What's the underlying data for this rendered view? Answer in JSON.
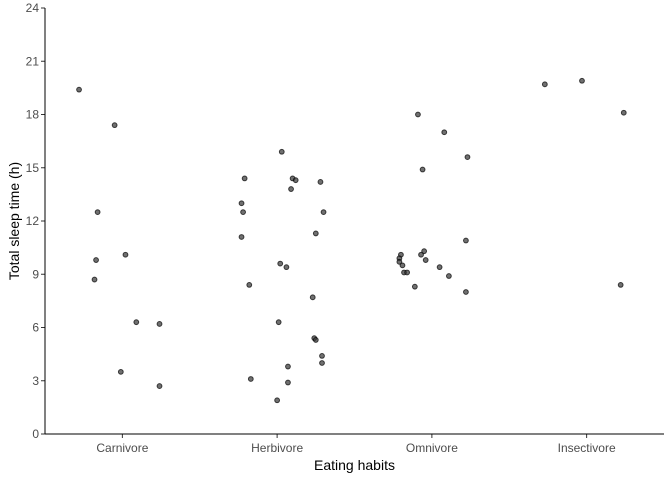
{
  "chart_data": {
    "type": "scatter",
    "title": "",
    "xlabel": "Eating habits",
    "ylabel": "Total sleep time (h)",
    "categories": [
      "Carnivore",
      "Herbivore",
      "Omnivore",
      "Insectivore"
    ],
    "ylim": [
      0,
      24
    ],
    "yticks": [
      "0",
      "3",
      "6",
      "9",
      "12",
      "15",
      "18",
      "21",
      "24"
    ],
    "grid": false,
    "legend": "none",
    "point_color": "#333333",
    "point_opacity": 0.7,
    "points": [
      {
        "category": "Carnivore",
        "jitter": -0.28,
        "y": 19.4
      },
      {
        "category": "Carnivore",
        "jitter": -0.05,
        "y": 17.4
      },
      {
        "category": "Carnivore",
        "jitter": -0.16,
        "y": 12.5
      },
      {
        "category": "Carnivore",
        "jitter": 0.02,
        "y": 10.1
      },
      {
        "category": "Carnivore",
        "jitter": -0.17,
        "y": 9.8
      },
      {
        "category": "Carnivore",
        "jitter": -0.18,
        "y": 8.7
      },
      {
        "category": "Carnivore",
        "jitter": 0.09,
        "y": 6.3
      },
      {
        "category": "Carnivore",
        "jitter": 0.24,
        "y": 6.2
      },
      {
        "category": "Carnivore",
        "jitter": -0.01,
        "y": 3.5
      },
      {
        "category": "Carnivore",
        "jitter": 0.24,
        "y": 2.7
      },
      {
        "category": "Herbivore",
        "jitter": 0.03,
        "y": 15.9
      },
      {
        "category": "Herbivore",
        "jitter": -0.21,
        "y": 14.4
      },
      {
        "category": "Herbivore",
        "jitter": 0.1,
        "y": 14.4
      },
      {
        "category": "Herbivore",
        "jitter": 0.12,
        "y": 14.3
      },
      {
        "category": "Herbivore",
        "jitter": 0.28,
        "y": 14.2
      },
      {
        "category": "Herbivore",
        "jitter": 0.09,
        "y": 13.8
      },
      {
        "category": "Herbivore",
        "jitter": -0.23,
        "y": 13.0
      },
      {
        "category": "Herbivore",
        "jitter": -0.22,
        "y": 12.5
      },
      {
        "category": "Herbivore",
        "jitter": 0.3,
        "y": 12.5
      },
      {
        "category": "Herbivore",
        "jitter": 0.25,
        "y": 11.3
      },
      {
        "category": "Herbivore",
        "jitter": -0.23,
        "y": 11.1
      },
      {
        "category": "Herbivore",
        "jitter": 0.02,
        "y": 9.6
      },
      {
        "category": "Herbivore",
        "jitter": 0.06,
        "y": 9.4
      },
      {
        "category": "Herbivore",
        "jitter": -0.18,
        "y": 8.4
      },
      {
        "category": "Herbivore",
        "jitter": 0.23,
        "y": 7.7
      },
      {
        "category": "Herbivore",
        "jitter": 0.01,
        "y": 6.3
      },
      {
        "category": "Herbivore",
        "jitter": 0.24,
        "y": 5.4
      },
      {
        "category": "Herbivore",
        "jitter": 0.25,
        "y": 5.3
      },
      {
        "category": "Herbivore",
        "jitter": 0.29,
        "y": 4.4
      },
      {
        "category": "Herbivore",
        "jitter": 0.29,
        "y": 4.0
      },
      {
        "category": "Herbivore",
        "jitter": 0.07,
        "y": 3.8
      },
      {
        "category": "Herbivore",
        "jitter": -0.17,
        "y": 3.1
      },
      {
        "category": "Herbivore",
        "jitter": 0.07,
        "y": 2.9
      },
      {
        "category": "Herbivore",
        "jitter": 0.0,
        "y": 1.9
      },
      {
        "category": "Omnivore",
        "jitter": -0.09,
        "y": 18.0
      },
      {
        "category": "Omnivore",
        "jitter": 0.08,
        "y": 17.0
      },
      {
        "category": "Omnivore",
        "jitter": 0.23,
        "y": 15.6
      },
      {
        "category": "Omnivore",
        "jitter": -0.06,
        "y": 14.9
      },
      {
        "category": "Omnivore",
        "jitter": 0.22,
        "y": 10.9
      },
      {
        "category": "Omnivore",
        "jitter": -0.05,
        "y": 10.3
      },
      {
        "category": "Omnivore",
        "jitter": -0.07,
        "y": 10.1
      },
      {
        "category": "Omnivore",
        "jitter": -0.2,
        "y": 10.1
      },
      {
        "category": "Omnivore",
        "jitter": -0.21,
        "y": 9.9
      },
      {
        "category": "Omnivore",
        "jitter": -0.04,
        "y": 9.8
      },
      {
        "category": "Omnivore",
        "jitter": -0.21,
        "y": 9.7
      },
      {
        "category": "Omnivore",
        "jitter": -0.19,
        "y": 9.5
      },
      {
        "category": "Omnivore",
        "jitter": 0.05,
        "y": 9.4
      },
      {
        "category": "Omnivore",
        "jitter": -0.18,
        "y": 9.1
      },
      {
        "category": "Omnivore",
        "jitter": -0.16,
        "y": 9.1
      },
      {
        "category": "Omnivore",
        "jitter": 0.11,
        "y": 8.9
      },
      {
        "category": "Omnivore",
        "jitter": -0.11,
        "y": 8.3
      },
      {
        "category": "Omnivore",
        "jitter": 0.22,
        "y": 8.0
      },
      {
        "category": "Insectivore",
        "jitter": -0.27,
        "y": 19.7
      },
      {
        "category": "Insectivore",
        "jitter": -0.03,
        "y": 19.9
      },
      {
        "category": "Insectivore",
        "jitter": 0.24,
        "y": 18.1
      },
      {
        "category": "Insectivore",
        "jitter": 0.22,
        "y": 8.4
      }
    ]
  }
}
